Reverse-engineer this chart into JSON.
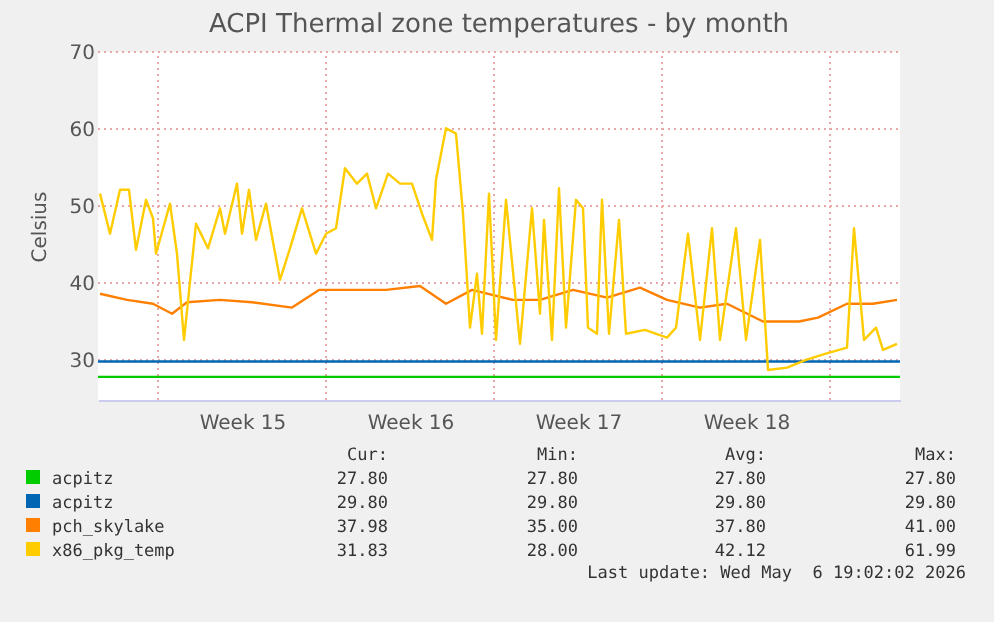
{
  "chart_data": {
    "type": "line",
    "title": "ACPI Thermal zone temperatures - by month",
    "ylabel": "Celsius",
    "xlim": [
      "2026-04-03T12:00",
      "2026-05-06T22:00"
    ],
    "ylim": [
      24.8,
      70
    ],
    "yticks": [
      30,
      40,
      50,
      60,
      70
    ],
    "xticks": [
      {
        "value": "2026-04-06",
        "label": null
      },
      {
        "value": "2026-04-09T12:00",
        "label": "Week 15"
      },
      {
        "value": "2026-04-13",
        "label": null
      },
      {
        "value": "2026-04-16T12:00",
        "label": "Week 16"
      },
      {
        "value": "2026-04-20",
        "label": null
      },
      {
        "value": "2026-04-23T12:00",
        "label": "Week 17"
      },
      {
        "value": "2026-04-27",
        "label": null
      },
      {
        "value": "2026-04-30T12:00",
        "label": "Week 18"
      },
      {
        "value": "2026-05-04",
        "label": null
      }
    ],
    "grid": true,
    "legend": "bottom",
    "series": [
      {
        "name": "acpitz",
        "color": "#00cc00",
        "x": [
          "2026-04-03T12:00",
          "2026-05-06T22:00"
        ],
        "values": [
          27.8,
          27.8
        ]
      },
      {
        "name": "acpitz",
        "color": "#0066b3",
        "x": [
          "2026-04-03T12:00",
          "2026-05-06T22:00"
        ],
        "values": [
          29.8,
          29.8
        ]
      },
      {
        "name": "pch_skylake",
        "color": "#ff8000",
        "x": [
          "2026-04-03T14:00",
          "2026-04-04T17:00",
          "2026-04-05T19:00",
          "2026-04-06T14:00",
          "2026-04-07T05:00",
          "2026-04-08T14:00",
          "2026-04-09T22:00",
          "2026-04-11T14:00",
          "2026-04-12T17:00",
          "2026-04-14T02:00",
          "2026-04-15T12:00",
          "2026-04-16T22:00",
          "2026-04-18T00:00",
          "2026-04-19T02:00",
          "2026-04-20T19:00",
          "2026-04-21T22:00",
          "2026-04-23T07:00",
          "2026-04-24T17:00",
          "2026-04-26T02:00",
          "2026-04-27T05:00",
          "2026-04-28T14:00",
          "2026-04-29T17:00",
          "2026-05-01T05:00",
          "2026-05-02T17:00",
          "2026-05-03T12:00",
          "2026-05-04T17:00",
          "2026-05-05T19:00",
          "2026-05-06T19:00"
        ],
        "values": [
          38.6,
          37.8,
          37.3,
          36.0,
          37.5,
          37.8,
          37.5,
          36.8,
          39.1,
          39.1,
          39.1,
          39.6,
          37.3,
          39.1,
          37.8,
          37.8,
          39.1,
          38.1,
          39.4,
          37.8,
          36.8,
          37.3,
          35.0,
          35.0,
          35.5,
          37.3,
          37.3,
          37.8
        ]
      },
      {
        "name": "x86_pkg_temp",
        "color": "#ffcc00",
        "x": [
          "2026-04-03T14:00",
          "2026-04-04T00:00",
          "2026-04-04T10:00",
          "2026-04-04T19:00",
          "2026-04-05T02:00",
          "2026-04-05T12:00",
          "2026-04-05T19:00",
          "2026-04-05T22:00",
          "2026-04-06T12:00",
          "2026-04-06T19:00",
          "2026-04-07T02:00",
          "2026-04-07T14:00",
          "2026-04-08T02:00",
          "2026-04-08T14:00",
          "2026-04-08T19:00",
          "2026-04-09T07:00",
          "2026-04-09T12:00",
          "2026-04-09T19:00",
          "2026-04-10T02:00",
          "2026-04-10T12:00",
          "2026-04-11T02:00",
          "2026-04-11T12:00",
          "2026-04-12T00:00",
          "2026-04-12T14:00",
          "2026-04-13T00:00",
          "2026-04-13T10:00",
          "2026-04-13T19:00",
          "2026-04-14T07:00",
          "2026-04-14T17:00",
          "2026-04-15T02:00",
          "2026-04-15T14:00",
          "2026-04-16T02:00",
          "2026-04-16T14:00",
          "2026-04-17T00:00",
          "2026-04-17T10:00",
          "2026-04-17T14:00",
          "2026-04-18T00:00",
          "2026-04-18T10:00",
          "2026-04-18T17:00",
          "2026-04-19T00:00",
          "2026-04-19T07:00",
          "2026-04-19T12:00",
          "2026-04-19T19:00",
          "2026-04-20T02:00",
          "2026-04-20T12:00",
          "2026-04-21T02:00",
          "2026-04-21T14:00",
          "2026-04-21T22:00",
          "2026-04-22T02:00",
          "2026-04-22T10:00",
          "2026-04-22T17:00",
          "2026-04-23T00:00",
          "2026-04-23T10:00",
          "2026-04-23T17:00",
          "2026-04-23T22:00",
          "2026-04-24T07:00",
          "2026-04-24T12:00",
          "2026-04-24T19:00",
          "2026-04-25T05:00",
          "2026-04-25T12:00",
          "2026-04-26T07:00",
          "2026-04-27T05:00",
          "2026-04-27T14:00",
          "2026-04-28T02:00",
          "2026-04-28T14:00",
          "2026-04-29T02:00",
          "2026-04-29T10:00",
          "2026-04-30T02:00",
          "2026-04-30T12:00",
          "2026-05-01T02:00",
          "2026-05-01T10:00",
          "2026-05-02T05:00",
          "2026-05-03T00:00",
          "2026-05-03T19:00",
          "2026-05-04T17:00",
          "2026-05-05T00:00",
          "2026-05-05T10:00",
          "2026-05-05T22:00",
          "2026-05-06T05:00",
          "2026-05-06T19:00"
        ],
        "values": [
          51.6,
          46.4,
          52.1,
          52.1,
          44.3,
          50.8,
          48.4,
          43.8,
          50.3,
          43.8,
          32.6,
          47.7,
          44.5,
          49.7,
          46.4,
          52.9,
          46.4,
          52.1,
          45.6,
          50.3,
          40.4,
          44.5,
          49.7,
          43.8,
          46.4,
          47.1,
          54.9,
          52.9,
          54.2,
          49.7,
          54.2,
          52.9,
          52.9,
          49.0,
          45.6,
          53.4,
          60.1,
          59.4,
          49.0,
          34.2,
          41.2,
          33.4,
          51.6,
          32.6,
          50.8,
          32.1,
          49.7,
          36.0,
          48.2,
          32.6,
          52.3,
          34.2,
          50.8,
          49.7,
          34.2,
          33.4,
          50.8,
          33.4,
          48.2,
          33.4,
          33.9,
          32.9,
          34.2,
          46.4,
          32.6,
          47.1,
          32.6,
          47.1,
          32.6,
          45.6,
          28.7,
          29.0,
          30.0,
          30.8,
          31.6,
          47.1,
          32.6,
          34.2,
          31.3,
          32.1
        ]
      }
    ],
    "annotations": [
      "Cur:",
      "Min:",
      "Avg:",
      "Max:",
      "27.80",
      "27.80",
      "27.80",
      "27.80",
      "29.80",
      "29.80",
      "29.80",
      "29.80",
      "37.98",
      "35.00",
      "37.80",
      "41.00",
      "31.83",
      "28.00",
      "42.12",
      "61.99",
      "Last update: Wed May  6 19:02:02 2026"
    ]
  }
}
